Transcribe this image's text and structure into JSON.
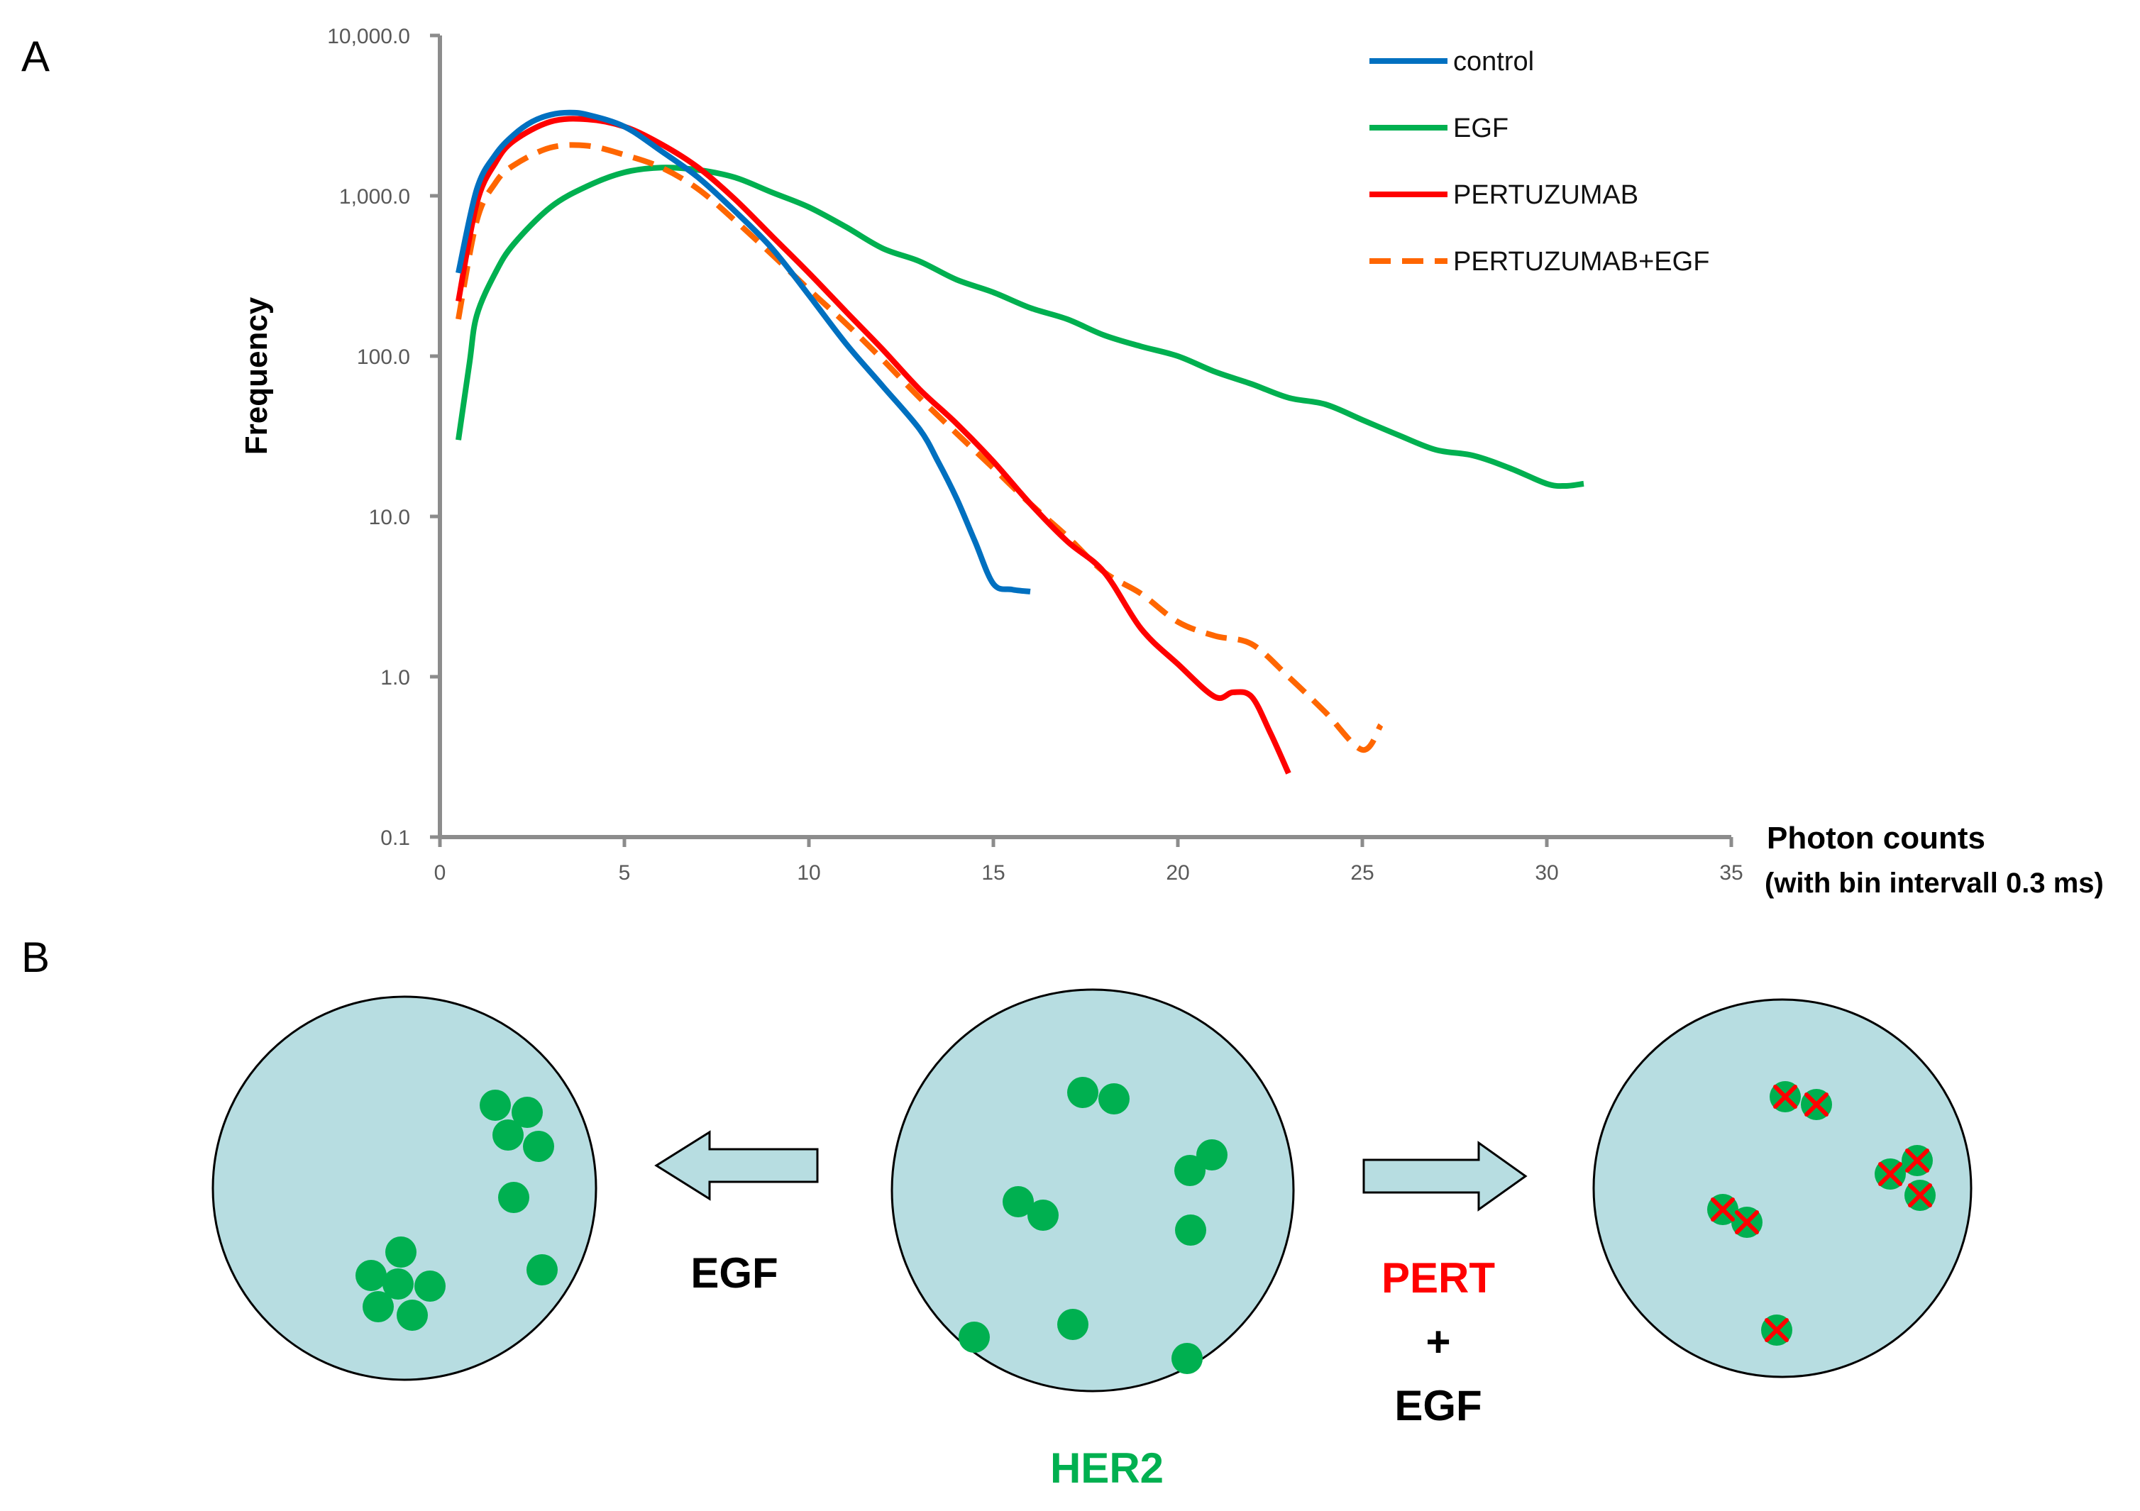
{
  "panel_labels": {
    "a": "A",
    "b": "B"
  },
  "chart_data": {
    "type": "line",
    "yscale": "log",
    "xlabel": "Photon counts",
    "xlabel_sub": "(with bin intervall 0.3 ms)",
    "ylabel": "Frequency",
    "xlim": [
      0,
      35
    ],
    "ylim": [
      0.1,
      10000
    ],
    "xticks": [
      0,
      5,
      10,
      15,
      20,
      25,
      30,
      35
    ],
    "yticks": [
      {
        "value": 0.1,
        "label": "0.1"
      },
      {
        "value": 1,
        "label": "1.0"
      },
      {
        "value": 10,
        "label": "10.0"
      },
      {
        "value": 100,
        "label": "100.0"
      },
      {
        "value": 1000,
        "label": "1,000.0"
      },
      {
        "value": 10000,
        "label": "10,000.0"
      }
    ],
    "legend_position": "top-right",
    "series": [
      {
        "name": "control",
        "color": "#0070c0",
        "dash": false,
        "x": [
          0.5,
          1,
          1.5,
          2,
          2.5,
          3,
          3.5,
          4,
          5,
          6,
          7,
          8,
          9,
          10,
          11,
          12,
          13,
          13.5,
          14,
          14.5,
          15,
          15.5,
          16
        ],
        "y": [
          330,
          1100,
          1800,
          2400,
          2900,
          3200,
          3300,
          3200,
          2700,
          1900,
          1300,
          800,
          470,
          240,
          120,
          65,
          35,
          22,
          13,
          7,
          3.8,
          3.5,
          3.4
        ]
      },
      {
        "name": "EGF",
        "color": "#00b050",
        "dash": false,
        "x": [
          0.5,
          0.8,
          1,
          1.5,
          2,
          3,
          4,
          5,
          6,
          7,
          8,
          9,
          10,
          11,
          12,
          13,
          14,
          15,
          16,
          17,
          18,
          19,
          20,
          21,
          22,
          23,
          24,
          25,
          26,
          27,
          28,
          29,
          30,
          30.5,
          31
        ],
        "y": [
          30,
          90,
          180,
          330,
          500,
          850,
          1150,
          1400,
          1500,
          1450,
          1300,
          1050,
          850,
          640,
          470,
          390,
          300,
          250,
          200,
          170,
          135,
          115,
          100,
          80,
          67,
          55,
          50,
          40,
          32,
          26,
          24,
          20,
          16,
          15.5,
          16
        ]
      },
      {
        "name": "PERTUZUMAB",
        "color": "#ff0000",
        "dash": false,
        "x": [
          0.5,
          1,
          1.5,
          2,
          3,
          4,
          5,
          6,
          7,
          8,
          9,
          10,
          11,
          12,
          13,
          14,
          15,
          16,
          17,
          18,
          19,
          20,
          21,
          21.5,
          22,
          22.5,
          23
        ],
        "y": [
          220,
          900,
          1600,
          2200,
          2900,
          3000,
          2700,
          2100,
          1500,
          950,
          560,
          330,
          190,
          110,
          62,
          38,
          22,
          12,
          7,
          4.5,
          2,
          1.2,
          0.75,
          0.8,
          0.75,
          0.45,
          0.25
        ]
      },
      {
        "name": "PERTUZUMAB+EGF",
        "color": "#ff6600",
        "dash": true,
        "x": [
          0.5,
          1,
          1.5,
          2,
          3,
          4,
          5,
          6,
          7,
          8,
          9,
          10,
          11,
          12,
          13,
          14,
          15,
          16,
          17,
          18,
          19,
          20,
          21,
          22,
          23,
          24,
          25,
          25.5
        ],
        "y": [
          170,
          700,
          1200,
          1550,
          2000,
          2050,
          1800,
          1500,
          1100,
          700,
          430,
          260,
          160,
          95,
          55,
          33,
          20,
          12,
          7.5,
          4.5,
          3.3,
          2.2,
          1.8,
          1.6,
          1.0,
          0.6,
          0.35,
          0.5
        ]
      }
    ]
  },
  "diagram": {
    "left_arrow_label": "EGF",
    "right_arrow_label_lines": [
      "PERT",
      "+",
      "EGF"
    ],
    "center_label": "HER2",
    "colors": {
      "cell_fill": "#b7dde1",
      "receptor": "#00b050",
      "blocked_mark": "#ff0000",
      "arrow_fill": "#b7dde1"
    }
  }
}
